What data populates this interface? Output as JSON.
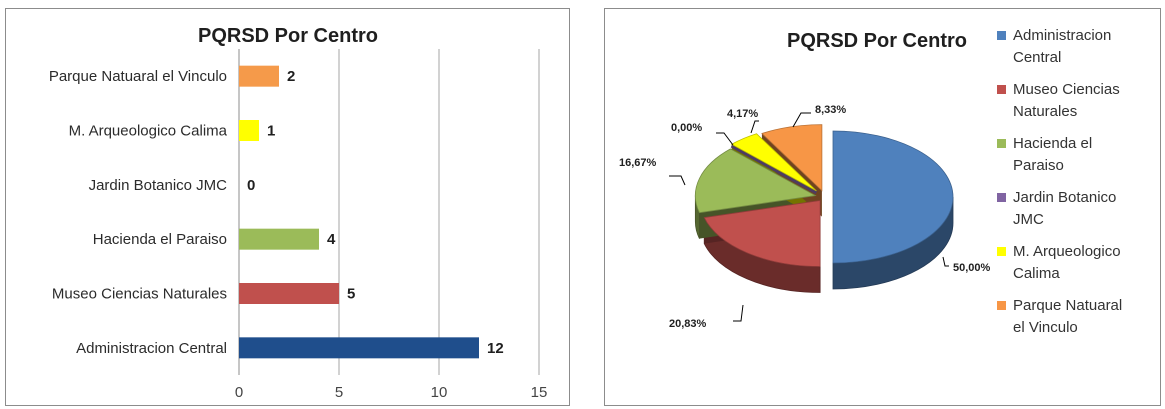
{
  "chart_data": [
    {
      "type": "bar",
      "orientation": "horizontal",
      "title": "PQRSD Por Centro",
      "categories": [
        "Parque Natuaral el Vinculo",
        "M. Arqueologico Calima",
        "Jardin Botanico JMC",
        "Hacienda el Paraiso",
        "Museo Ciencias Naturales",
        "Administracion Central"
      ],
      "values": [
        2,
        1,
        0,
        4,
        5,
        12
      ],
      "data_labels": [
        "2",
        "1",
        "0",
        "4",
        "5",
        "12"
      ],
      "colors": [
        "#f59a4a",
        "#ffff00",
        "#7e62a6",
        "#9bbb59",
        "#c0504d",
        "#1f4e8c"
      ],
      "xlim": [
        0,
        15
      ],
      "xticks": [
        0,
        5,
        10,
        15
      ],
      "xtick_labels": [
        "0",
        "5",
        "10",
        "15"
      ],
      "grid": true,
      "xlabel": "",
      "ylabel": ""
    },
    {
      "type": "pie",
      "style": "3d-exploded",
      "title": "PQRSD Por Centro",
      "labels": [
        "Administracion Central",
        "Museo Ciencias Naturales",
        "Hacienda el Paraiso",
        "Jardin Botanico JMC",
        "M. Arqueologico Calima",
        "Parque Natuaral el Vinculo"
      ],
      "legend_lines": [
        [
          "Administracion",
          "Central"
        ],
        [
          "Museo Ciencias",
          "Naturales"
        ],
        [
          "Hacienda el",
          "Paraiso"
        ],
        [
          "Jardin Botanico",
          "JMC"
        ],
        [
          "M. Arqueologico",
          "Calima"
        ],
        [
          "Parque Natuaral",
          "el Vinculo"
        ]
      ],
      "values": [
        50.0,
        20.83,
        16.67,
        0.0,
        4.17,
        8.33
      ],
      "value_labels": [
        "50,00%",
        "20,83%",
        "16,67%",
        "0,00%",
        "4,17%",
        "8,33%"
      ],
      "colors": [
        "#4f81bd",
        "#c0504d",
        "#9bbb59",
        "#8064a2",
        "#ffff00",
        "#f79646"
      ],
      "legend_position": "right"
    }
  ]
}
